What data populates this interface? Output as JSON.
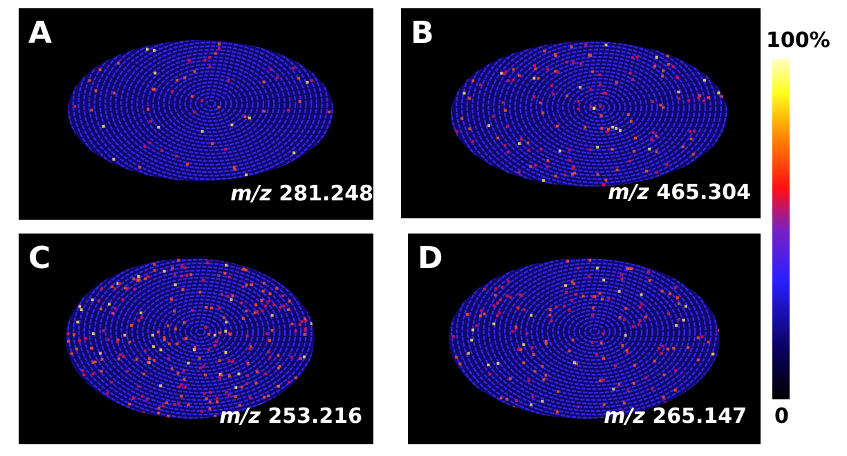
{
  "panels": [
    {
      "letter": "A",
      "ion_prefix": "m/z",
      "ion_value": "281.248"
    },
    {
      "letter": "B",
      "ion_prefix": "m/z",
      "ion_value": "465.304"
    },
    {
      "letter": "C",
      "ion_prefix": "m/z",
      "ion_value": "253.216"
    },
    {
      "letter": "D",
      "ion_prefix": "m/z",
      "ion_value": "265.147"
    }
  ],
  "colorbar": {
    "max_label": "100%",
    "min_label": "0"
  }
}
